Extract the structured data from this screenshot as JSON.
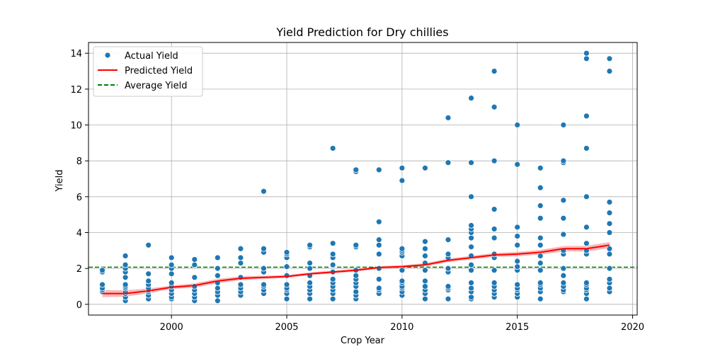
{
  "chart_data": {
    "type": "scatter",
    "title": "Yield Prediction for Dry chillies",
    "xlabel": "Crop Year",
    "ylabel": "Yield",
    "xlim": [
      1996.4,
      2020.2
    ],
    "ylim": [
      -0.6,
      14.6
    ],
    "xticks": [
      2000,
      2005,
      2010,
      2015,
      2020
    ],
    "yticks": [
      0,
      2,
      4,
      6,
      8,
      10,
      12,
      14
    ],
    "grid": true,
    "legend_position": "top-left",
    "series": [
      {
        "name": "Actual Yield",
        "kind": "scatter",
        "color": "#1f77b4",
        "points": [
          [
            1997,
            0.7
          ],
          [
            1997,
            0.8
          ],
          [
            1997,
            0.9
          ],
          [
            1997,
            1.1
          ],
          [
            1997,
            1.8
          ],
          [
            1997,
            1.9
          ],
          [
            1998,
            0.2
          ],
          [
            1998,
            0.4
          ],
          [
            1998,
            0.6
          ],
          [
            1998,
            0.7
          ],
          [
            1998,
            0.9
          ],
          [
            1998,
            1.0
          ],
          [
            1998,
            1.1
          ],
          [
            1998,
            1.5
          ],
          [
            1998,
            1.8
          ],
          [
            1998,
            2.0
          ],
          [
            1998,
            2.2
          ],
          [
            1998,
            2.7
          ],
          [
            1999,
            0.3
          ],
          [
            1999,
            0.5
          ],
          [
            1999,
            0.7
          ],
          [
            1999,
            0.8
          ],
          [
            1999,
            0.9
          ],
          [
            1999,
            1.1
          ],
          [
            1999,
            1.3
          ],
          [
            1999,
            1.7
          ],
          [
            1999,
            3.3
          ],
          [
            2000,
            0.3
          ],
          [
            2000,
            0.4
          ],
          [
            2000,
            0.6
          ],
          [
            2000,
            0.8
          ],
          [
            2000,
            1.0
          ],
          [
            2000,
            1.2
          ],
          [
            2000,
            1.7
          ],
          [
            2000,
            2.0
          ],
          [
            2000,
            2.2
          ],
          [
            2000,
            2.6
          ],
          [
            2001,
            0.2
          ],
          [
            2001,
            0.4
          ],
          [
            2001,
            0.6
          ],
          [
            2001,
            0.8
          ],
          [
            2001,
            1.0
          ],
          [
            2001,
            1.5
          ],
          [
            2001,
            2.2
          ],
          [
            2001,
            2.5
          ],
          [
            2002,
            0.2
          ],
          [
            2002,
            0.5
          ],
          [
            2002,
            0.7
          ],
          [
            2002,
            0.9
          ],
          [
            2002,
            1.2
          ],
          [
            2002,
            1.6
          ],
          [
            2002,
            2.0
          ],
          [
            2002,
            2.6
          ],
          [
            2003,
            0.5
          ],
          [
            2003,
            0.7
          ],
          [
            2003,
            0.9
          ],
          [
            2003,
            1.1
          ],
          [
            2003,
            1.5
          ],
          [
            2003,
            2.3
          ],
          [
            2003,
            2.6
          ],
          [
            2003,
            3.1
          ],
          [
            2004,
            0.6
          ],
          [
            2004,
            0.8
          ],
          [
            2004,
            1.0
          ],
          [
            2004,
            1.1
          ],
          [
            2004,
            1.8
          ],
          [
            2004,
            2.0
          ],
          [
            2004,
            2.9
          ],
          [
            2004,
            3.1
          ],
          [
            2004,
            6.3
          ],
          [
            2005,
            0.3
          ],
          [
            2005,
            0.6
          ],
          [
            2005,
            0.8
          ],
          [
            2005,
            0.9
          ],
          [
            2005,
            1.1
          ],
          [
            2005,
            1.6
          ],
          [
            2005,
            2.1
          ],
          [
            2005,
            2.6
          ],
          [
            2005,
            2.8
          ],
          [
            2005,
            2.9
          ],
          [
            2006,
            0.3
          ],
          [
            2006,
            0.6
          ],
          [
            2006,
            0.8
          ],
          [
            2006,
            1.0
          ],
          [
            2006,
            1.2
          ],
          [
            2006,
            1.6
          ],
          [
            2006,
            2.0
          ],
          [
            2006,
            2.3
          ],
          [
            2006,
            3.2
          ],
          [
            2006,
            3.3
          ],
          [
            2007,
            0.3
          ],
          [
            2007,
            0.6
          ],
          [
            2007,
            0.8
          ],
          [
            2007,
            1.0
          ],
          [
            2007,
            1.2
          ],
          [
            2007,
            1.4
          ],
          [
            2007,
            1.8
          ],
          [
            2007,
            2.2
          ],
          [
            2007,
            2.6
          ],
          [
            2007,
            2.8
          ],
          [
            2007,
            3.4
          ],
          [
            2007,
            8.7
          ],
          [
            2008,
            0.3
          ],
          [
            2008,
            0.5
          ],
          [
            2008,
            0.7
          ],
          [
            2008,
            1.0
          ],
          [
            2008,
            1.2
          ],
          [
            2008,
            1.4
          ],
          [
            2008,
            1.6
          ],
          [
            2008,
            1.9
          ],
          [
            2008,
            3.2
          ],
          [
            2008,
            3.3
          ],
          [
            2008,
            7.4
          ],
          [
            2008,
            7.5
          ],
          [
            2009,
            0.6
          ],
          [
            2009,
            0.8
          ],
          [
            2009,
            0.9
          ],
          [
            2009,
            1.4
          ],
          [
            2009,
            2.0
          ],
          [
            2009,
            2.8
          ],
          [
            2009,
            3.3
          ],
          [
            2009,
            3.6
          ],
          [
            2009,
            4.6
          ],
          [
            2009,
            7.5
          ],
          [
            2010,
            0.5
          ],
          [
            2010,
            0.7
          ],
          [
            2010,
            0.9
          ],
          [
            2010,
            1.0
          ],
          [
            2010,
            1.2
          ],
          [
            2010,
            1.3
          ],
          [
            2010,
            1.9
          ],
          [
            2010,
            2.7
          ],
          [
            2010,
            2.9
          ],
          [
            2010,
            3.0
          ],
          [
            2010,
            3.1
          ],
          [
            2010,
            6.9
          ],
          [
            2010,
            7.6
          ],
          [
            2011,
            0.3
          ],
          [
            2011,
            0.6
          ],
          [
            2011,
            0.8
          ],
          [
            2011,
            1.0
          ],
          [
            2011,
            1.3
          ],
          [
            2011,
            1.9
          ],
          [
            2011,
            2.3
          ],
          [
            2011,
            2.7
          ],
          [
            2011,
            3.1
          ],
          [
            2011,
            3.5
          ],
          [
            2011,
            7.6
          ],
          [
            2012,
            0.3
          ],
          [
            2012,
            0.8
          ],
          [
            2012,
            0.9
          ],
          [
            2012,
            1.0
          ],
          [
            2012,
            1.8
          ],
          [
            2012,
            2.0
          ],
          [
            2012,
            2.6
          ],
          [
            2012,
            2.8
          ],
          [
            2012,
            3.6
          ],
          [
            2012,
            7.9
          ],
          [
            2012,
            10.4
          ],
          [
            2013,
            0.3
          ],
          [
            2013,
            0.4
          ],
          [
            2013,
            0.7
          ],
          [
            2013,
            0.9
          ],
          [
            2013,
            1.2
          ],
          [
            2013,
            1.9
          ],
          [
            2013,
            2.2
          ],
          [
            2013,
            2.7
          ],
          [
            2013,
            3.2
          ],
          [
            2013,
            3.7
          ],
          [
            2013,
            4.0
          ],
          [
            2013,
            4.2
          ],
          [
            2013,
            4.4
          ],
          [
            2013,
            6.0
          ],
          [
            2013,
            7.9
          ],
          [
            2013,
            11.5
          ],
          [
            2014,
            0.4
          ],
          [
            2014,
            0.6
          ],
          [
            2014,
            0.8
          ],
          [
            2014,
            1.0
          ],
          [
            2014,
            1.2
          ],
          [
            2014,
            1.9
          ],
          [
            2014,
            2.6
          ],
          [
            2014,
            2.8
          ],
          [
            2014,
            3.7
          ],
          [
            2014,
            4.2
          ],
          [
            2014,
            5.3
          ],
          [
            2014,
            8.0
          ],
          [
            2014,
            11.0
          ],
          [
            2014,
            13.0
          ],
          [
            2015,
            0.4
          ],
          [
            2015,
            0.6
          ],
          [
            2015,
            0.8
          ],
          [
            2015,
            0.9
          ],
          [
            2015,
            1.1
          ],
          [
            2015,
            1.9
          ],
          [
            2015,
            2.1
          ],
          [
            2015,
            2.4
          ],
          [
            2015,
            3.3
          ],
          [
            2015,
            3.8
          ],
          [
            2015,
            4.3
          ],
          [
            2015,
            7.8
          ],
          [
            2015,
            10.0
          ],
          [
            2016,
            0.3
          ],
          [
            2016,
            0.7
          ],
          [
            2016,
            0.9
          ],
          [
            2016,
            1.1
          ],
          [
            2016,
            1.2
          ],
          [
            2016,
            1.9
          ],
          [
            2016,
            2.3
          ],
          [
            2016,
            2.7
          ],
          [
            2016,
            3.3
          ],
          [
            2016,
            3.7
          ],
          [
            2016,
            4.8
          ],
          [
            2016,
            5.5
          ],
          [
            2016,
            6.5
          ],
          [
            2016,
            7.6
          ],
          [
            2017,
            0.7
          ],
          [
            2017,
            0.8
          ],
          [
            2017,
            1.0
          ],
          [
            2017,
            1.2
          ],
          [
            2017,
            1.6
          ],
          [
            2017,
            2.0
          ],
          [
            2017,
            2.8
          ],
          [
            2017,
            3.0
          ],
          [
            2017,
            3.9
          ],
          [
            2017,
            4.8
          ],
          [
            2017,
            5.8
          ],
          [
            2017,
            7.9
          ],
          [
            2017,
            8.0
          ],
          [
            2017,
            10.0
          ],
          [
            2018,
            0.3
          ],
          [
            2018,
            0.6
          ],
          [
            2018,
            0.8
          ],
          [
            2018,
            0.9
          ],
          [
            2018,
            1.1
          ],
          [
            2018,
            1.2
          ],
          [
            2018,
            2.8
          ],
          [
            2018,
            3.0
          ],
          [
            2018,
            3.4
          ],
          [
            2018,
            4.3
          ],
          [
            2018,
            6.0
          ],
          [
            2018,
            8.7
          ],
          [
            2018,
            10.5
          ],
          [
            2018,
            13.7
          ],
          [
            2018,
            14.0
          ],
          [
            2019,
            0.7
          ],
          [
            2019,
            0.9
          ],
          [
            2019,
            1.2
          ],
          [
            2019,
            1.4
          ],
          [
            2019,
            2.0
          ],
          [
            2019,
            2.8
          ],
          [
            2019,
            3.1
          ],
          [
            2019,
            4.0
          ],
          [
            2019,
            4.5
          ],
          [
            2019,
            5.1
          ],
          [
            2019,
            5.7
          ],
          [
            2019,
            13.0
          ],
          [
            2019,
            13.7
          ]
        ]
      },
      {
        "name": "Predicted Yield",
        "kind": "line",
        "color": "#ff0000",
        "band_color": "#f4a0a0",
        "x": [
          1997,
          1998,
          1999,
          2000,
          2001,
          2002,
          2003,
          2004,
          2005,
          2006,
          2007,
          2008,
          2009,
          2010,
          2011,
          2012,
          2013,
          2014,
          2015,
          2016,
          2017,
          2018,
          2019
        ],
        "y": [
          0.6,
          0.6,
          0.75,
          0.95,
          1.05,
          1.3,
          1.45,
          1.5,
          1.55,
          1.7,
          1.8,
          1.9,
          2.05,
          2.1,
          2.2,
          2.45,
          2.6,
          2.75,
          2.8,
          2.9,
          3.1,
          3.1,
          3.3
        ],
        "y_low": [
          0.4,
          0.42,
          0.62,
          0.85,
          0.93,
          1.18,
          1.34,
          1.41,
          1.47,
          1.62,
          1.72,
          1.83,
          1.97,
          2.02,
          2.11,
          2.35,
          2.5,
          2.64,
          2.68,
          2.77,
          2.95,
          2.94,
          3.13
        ],
        "y_high": [
          0.8,
          0.78,
          0.88,
          1.05,
          1.17,
          1.42,
          1.56,
          1.59,
          1.63,
          1.78,
          1.88,
          1.97,
          2.13,
          2.18,
          2.29,
          2.55,
          2.7,
          2.86,
          2.92,
          3.03,
          3.25,
          3.26,
          3.47
        ]
      },
      {
        "name": "Average Yield",
        "kind": "hline",
        "color": "#008000",
        "value": 2.07
      }
    ]
  }
}
